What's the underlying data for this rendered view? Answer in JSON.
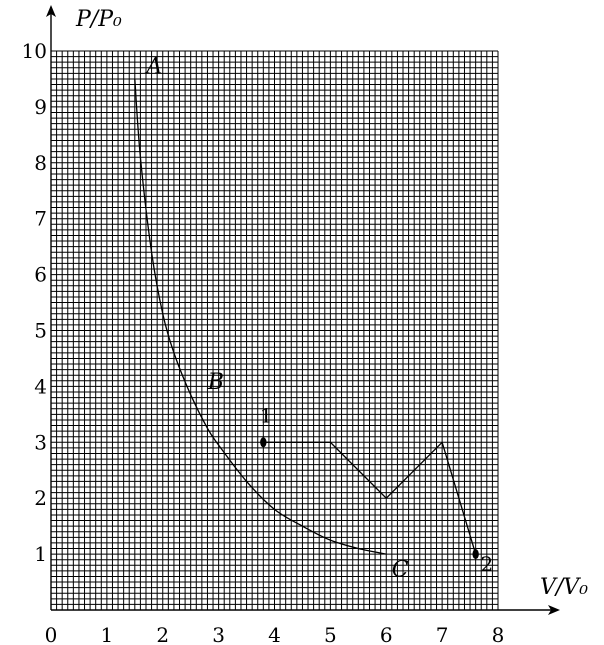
{
  "chart_data": {
    "type": "line",
    "xlabel": "V/V₀",
    "ylabel": "P/P₀",
    "xlim": [
      0,
      8
    ],
    "ylim": [
      0,
      10
    ],
    "grid": true,
    "x_ticks": [
      "0",
      "1",
      "2",
      "3",
      "4",
      "5",
      "6",
      "7",
      "8"
    ],
    "y_ticks": [
      "1",
      "2",
      "3",
      "4",
      "5",
      "6",
      "7",
      "8",
      "9",
      "10"
    ],
    "series": [
      {
        "kind": "curve",
        "x": [
          1.5,
          1.6,
          1.8,
          2.0,
          2.2,
          2.5,
          2.8,
          3.0,
          3.5,
          4.0,
          4.5,
          5.0,
          5.5,
          6.0
        ],
        "y": [
          9.5,
          8.1,
          6.4,
          5.3,
          4.6,
          3.85,
          3.25,
          2.95,
          2.3,
          1.8,
          1.5,
          1.25,
          1.1,
          1.0
        ]
      },
      {
        "kind": "polyline",
        "x": [
          3.8,
          5.0,
          6.0,
          7.0,
          7.6
        ],
        "y": [
          3.0,
          3.0,
          2.0,
          3.0,
          1.0
        ]
      }
    ],
    "annotations": [
      {
        "text": "A",
        "x": 1.85,
        "y": 9.6
      },
      {
        "text": "B",
        "x": 2.95,
        "y": 3.95
      },
      {
        "text": "C",
        "x": 6.25,
        "y": 0.6
      },
      {
        "text": "1",
        "x": 3.85,
        "y": 3.35
      },
      {
        "text": "2",
        "x": 7.8,
        "y": 0.7
      }
    ],
    "points": [
      {
        "x": 3.8,
        "y": 3.0
      },
      {
        "x": 7.6,
        "y": 1.0
      }
    ]
  }
}
